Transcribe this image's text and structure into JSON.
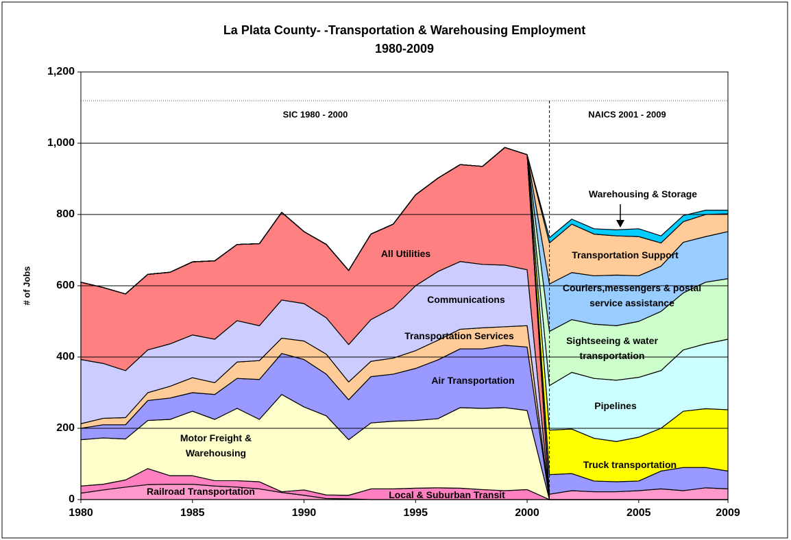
{
  "chart_data": {
    "type": "stacked_area",
    "title": "La Plata County- -Transportation & Warehousing Employment",
    "subtitle": "1980-2009",
    "y_label": "# of Jobs",
    "annotations": [
      "SIC 1980 - 2000",
      "NAICS 2001 - 2009"
    ],
    "x": [
      1980,
      1981,
      1982,
      1983,
      1984,
      1985,
      1986,
      1987,
      1988,
      1989,
      1990,
      1991,
      1992,
      1993,
      1994,
      1995,
      1996,
      1997,
      1998,
      1999,
      2000,
      2001,
      2002,
      2003,
      2004,
      2005,
      2006,
      2007,
      2008,
      2009
    ],
    "xlim": [
      1980,
      2009
    ],
    "xticks": [
      1980,
      1985,
      1990,
      1995,
      2000,
      2005,
      2009
    ],
    "ylim": [
      0,
      1200
    ],
    "yticks": [
      0,
      200,
      400,
      600,
      800,
      {
        "value": 1000,
        "label": "1,000"
      },
      {
        "value": 1200,
        "label": "1,200"
      }
    ],
    "grid": true,
    "series": [
      {
        "name": "Railroad Transportation",
        "color": "#ff99cc",
        "values": [
          18,
          27,
          35,
          42,
          43,
          43,
          38,
          35,
          30,
          20,
          12,
          3,
          2,
          0,
          0,
          0,
          0,
          0,
          0,
          0,
          0,
          0,
          0,
          0,
          0,
          0,
          0,
          0,
          0,
          0
        ]
      },
      {
        "name": "Local & Suburban Transit",
        "color": "#ff80c0",
        "values": [
          20,
          16,
          20,
          45,
          24,
          24,
          15,
          18,
          20,
          2,
          15,
          10,
          10,
          30,
          30,
          32,
          33,
          32,
          28,
          25,
          28,
          0,
          0,
          0,
          0,
          0,
          0,
          0,
          0,
          0
        ]
      },
      {
        "name": "Motor Freight & Warehousing",
        "color": "#ffffcc",
        "values": [
          130,
          130,
          115,
          135,
          158,
          181,
          172,
          203,
          175,
          273,
          233,
          222,
          156,
          185,
          190,
          190,
          194,
          226,
          228,
          233,
          222,
          0,
          0,
          0,
          0,
          0,
          0,
          0,
          0,
          0
        ]
      },
      {
        "name": "Air Transportation",
        "color": "#9999ff",
        "values": [
          32,
          37,
          40,
          56,
          60,
          52,
          70,
          84,
          112,
          115,
          133,
          117,
          112,
          130,
          132,
          146,
          165,
          165,
          167,
          175,
          178,
          0,
          0,
          0,
          0,
          0,
          0,
          0,
          0,
          0
        ]
      },
      {
        "name": "Transportation Services",
        "color": "#ffcc99",
        "values": [
          13,
          18,
          20,
          22,
          33,
          42,
          33,
          46,
          53,
          43,
          52,
          56,
          50,
          43,
          45,
          50,
          55,
          55,
          59,
          52,
          60,
          0,
          0,
          0,
          0,
          0,
          0,
          0,
          0,
          0
        ]
      },
      {
        "name": "Communications",
        "color": "#ccccff",
        "values": [
          180,
          154,
          132,
          120,
          119,
          120,
          122,
          116,
          98,
          107,
          105,
          102,
          105,
          117,
          141,
          182,
          193,
          190,
          178,
          173,
          157,
          0,
          0,
          0,
          0,
          0,
          0,
          0,
          0,
          0
        ]
      },
      {
        "name": "All Utilities",
        "color": "#ff8080",
        "values": [
          217,
          213,
          215,
          212,
          201,
          205,
          220,
          214,
          230,
          246,
          202,
          206,
          208,
          240,
          235,
          255,
          262,
          272,
          275,
          330,
          323,
          0,
          0,
          0,
          0,
          0,
          0,
          0,
          0,
          0
        ]
      },
      {
        "color": "#ff99cc",
        "values": [
          0,
          0,
          0,
          0,
          0,
          0,
          0,
          0,
          0,
          0,
          0,
          0,
          0,
          0,
          0,
          0,
          0,
          0,
          0,
          0,
          0,
          15,
          25,
          22,
          22,
          25,
          30,
          25,
          33,
          30
        ]
      },
      {
        "color": "#9999ff",
        "values": [
          0,
          0,
          0,
          0,
          0,
          0,
          0,
          0,
          0,
          0,
          0,
          0,
          0,
          0,
          0,
          0,
          0,
          0,
          0,
          0,
          0,
          55,
          48,
          30,
          28,
          27,
          50,
          65,
          57,
          50
        ]
      },
      {
        "name": "Truck transportation",
        "color": "#ffff00",
        "values": [
          0,
          0,
          0,
          0,
          0,
          0,
          0,
          0,
          0,
          0,
          0,
          0,
          0,
          0,
          0,
          0,
          0,
          0,
          0,
          0,
          0,
          125,
          125,
          120,
          113,
          123,
          120,
          158,
          165,
          172
        ]
      },
      {
        "name": "Pipelines",
        "color": "#ccffff",
        "values": [
          0,
          0,
          0,
          0,
          0,
          0,
          0,
          0,
          0,
          0,
          0,
          0,
          0,
          0,
          0,
          0,
          0,
          0,
          0,
          0,
          0,
          125,
          159,
          168,
          172,
          168,
          162,
          172,
          182,
          198
        ]
      },
      {
        "name": "Sightseeing & water transportation",
        "color": "#ccffcc",
        "values": [
          0,
          0,
          0,
          0,
          0,
          0,
          0,
          0,
          0,
          0,
          0,
          0,
          0,
          0,
          0,
          0,
          0,
          0,
          0,
          0,
          0,
          152,
          148,
          152,
          153,
          157,
          166,
          160,
          173,
          170
        ]
      },
      {
        "name": "Couriers,messengers & postal service assistance",
        "color": "#99ccff",
        "values": [
          0,
          0,
          0,
          0,
          0,
          0,
          0,
          0,
          0,
          0,
          0,
          0,
          0,
          0,
          0,
          0,
          0,
          0,
          0,
          0,
          0,
          133,
          132,
          136,
          142,
          128,
          127,
          142,
          128,
          132
        ]
      },
      {
        "name": "Transportation Support",
        "color": "#ffcc99",
        "values": [
          0,
          0,
          0,
          0,
          0,
          0,
          0,
          0,
          0,
          0,
          0,
          0,
          0,
          0,
          0,
          0,
          0,
          0,
          0,
          0,
          0,
          115,
          136,
          117,
          110,
          110,
          65,
          58,
          62,
          50
        ]
      },
      {
        "name": "Warehousing & Storage",
        "color": "#00ccff",
        "values": [
          0,
          0,
          0,
          0,
          0,
          0,
          0,
          0,
          0,
          0,
          0,
          0,
          0,
          0,
          0,
          0,
          0,
          0,
          0,
          0,
          0,
          15,
          14,
          15,
          17,
          22,
          20,
          17,
          12,
          10
        ]
      }
    ]
  }
}
